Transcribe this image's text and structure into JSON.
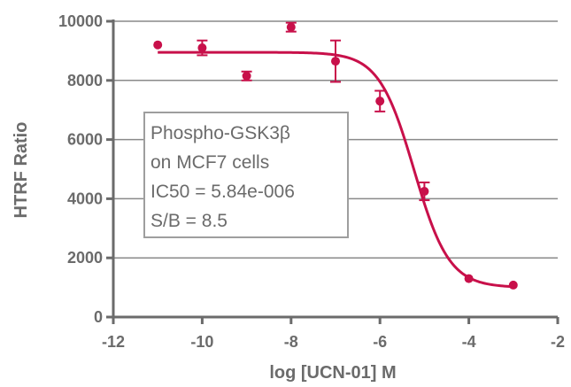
{
  "chart_data": {
    "type": "scatter",
    "title": "",
    "xlabel": "log [UCN-01] M",
    "ylabel": "HTRF Ratio",
    "xlim": [
      -12,
      -2
    ],
    "ylim": [
      0,
      10000
    ],
    "xticks": [
      -12,
      -10,
      -8,
      -6,
      -4,
      -2
    ],
    "yticks": [
      0,
      2000,
      4000,
      6000,
      8000,
      10000
    ],
    "xtick_labels": [
      "-12",
      "-10",
      "-8",
      "-6",
      "-4",
      "-2"
    ],
    "ytick_labels": [
      "0",
      "2000",
      "4000",
      "6000",
      "8000",
      "10000"
    ],
    "grid": "horizontal",
    "series": [
      {
        "color": "#c8104a",
        "points": [
          {
            "x": -11,
            "y": 9200,
            "err": 0
          },
          {
            "x": -10,
            "y": 9100,
            "err": 250
          },
          {
            "x": -9,
            "y": 8150,
            "err": 150
          },
          {
            "x": -8,
            "y": 9800,
            "err": 150
          },
          {
            "x": -7,
            "y": 8650,
            "err": 700
          },
          {
            "x": -6,
            "y": 7300,
            "err": 350
          },
          {
            "x": -5,
            "y": 4250,
            "err": 300
          },
          {
            "x": -4,
            "y": 1300,
            "err": 0
          },
          {
            "x": -3,
            "y": 1080,
            "err": 0
          }
        ],
        "fit": {
          "model": "4PL",
          "top": 8950,
          "bottom": 1000,
          "log_ic50": -5.233,
          "hill_slope": -1.1
        }
      }
    ],
    "annotation": {
      "lines": [
        "Phospho-GSK3β",
        "on MCF7 cells",
        "IC50 = 5.84e-006",
        "S/B = 8.5"
      ]
    }
  }
}
